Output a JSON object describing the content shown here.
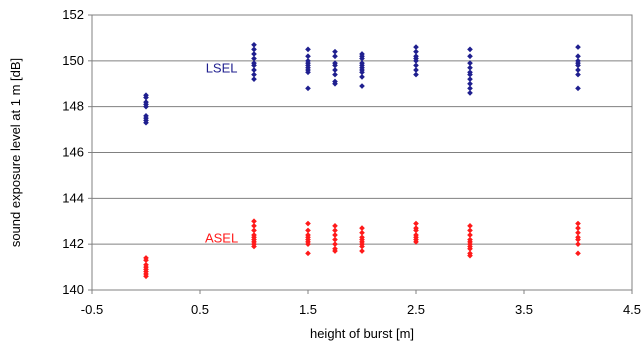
{
  "chart_data": {
    "type": "scatter",
    "title": "",
    "xlabel": "height of burst [m]",
    "ylabel": "sound exposure level at 1 m [dB]",
    "xlim": [
      -0.5,
      4.5
    ],
    "ylim": [
      140,
      152
    ],
    "x_ticks": [
      "-0.5",
      "0.5",
      "1.5",
      "2.5",
      "3.5",
      "4.5"
    ],
    "y_ticks": [
      "140",
      "142",
      "144",
      "146",
      "148",
      "150",
      "152"
    ],
    "x_tick_values": [
      -0.5,
      0.5,
      1.5,
      2.5,
      3.5,
      4.5
    ],
    "y_tick_values": [
      140,
      142,
      144,
      146,
      148,
      150,
      152
    ],
    "grid": "horizontal",
    "series": [
      {
        "name": "LSEL",
        "color": "#1f1f8f",
        "label_at": [
          0.7,
          149.7
        ],
        "points": [
          [
            0,
            148.5
          ],
          [
            0,
            148.4
          ],
          [
            0,
            148.2
          ],
          [
            0,
            148.1
          ],
          [
            0,
            148.0
          ],
          [
            0,
            147.6
          ],
          [
            0,
            147.5
          ],
          [
            0,
            147.4
          ],
          [
            0,
            147.3
          ],
          [
            1,
            150.7
          ],
          [
            1,
            150.5
          ],
          [
            1,
            150.3
          ],
          [
            1,
            150.1
          ],
          [
            1,
            149.9
          ],
          [
            1,
            149.8
          ],
          [
            1,
            149.6
          ],
          [
            1,
            149.4
          ],
          [
            1,
            149.2
          ],
          [
            1.5,
            150.5
          ],
          [
            1.5,
            150.2
          ],
          [
            1.5,
            150.0
          ],
          [
            1.5,
            149.9
          ],
          [
            1.5,
            149.8
          ],
          [
            1.5,
            149.7
          ],
          [
            1.5,
            149.6
          ],
          [
            1.5,
            149.5
          ],
          [
            1.5,
            148.8
          ],
          [
            1.75,
            150.4
          ],
          [
            1.75,
            150.2
          ],
          [
            1.75,
            149.9
          ],
          [
            1.75,
            149.8
          ],
          [
            1.75,
            149.6
          ],
          [
            1.75,
            149.4
          ],
          [
            1.75,
            149.1
          ],
          [
            1.75,
            149.0
          ],
          [
            2,
            150.3
          ],
          [
            2,
            150.2
          ],
          [
            2,
            150.1
          ],
          [
            2,
            149.9
          ],
          [
            2,
            149.8
          ],
          [
            2,
            149.7
          ],
          [
            2,
            149.6
          ],
          [
            2,
            149.5
          ],
          [
            2,
            149.3
          ],
          [
            2,
            148.9
          ],
          [
            2.5,
            150.6
          ],
          [
            2.5,
            150.4
          ],
          [
            2.5,
            150.2
          ],
          [
            2.5,
            150.1
          ],
          [
            2.5,
            150.0
          ],
          [
            2.5,
            149.8
          ],
          [
            2.5,
            149.6
          ],
          [
            2.5,
            149.4
          ],
          [
            3,
            150.5
          ],
          [
            3,
            150.2
          ],
          [
            3,
            149.9
          ],
          [
            3,
            149.7
          ],
          [
            3,
            149.5
          ],
          [
            3,
            149.4
          ],
          [
            3,
            149.2
          ],
          [
            3,
            149.0
          ],
          [
            3,
            148.8
          ],
          [
            3,
            148.6
          ],
          [
            4,
            150.6
          ],
          [
            4,
            150.2
          ],
          [
            4,
            150.0
          ],
          [
            4,
            149.9
          ],
          [
            4,
            149.8
          ],
          [
            4,
            149.6
          ],
          [
            4,
            149.4
          ],
          [
            4,
            148.8
          ]
        ]
      },
      {
        "name": "ASEL",
        "color": "#ff1a1a",
        "label_at": [
          0.7,
          142.3
        ],
        "points": [
          [
            0,
            141.4
          ],
          [
            0,
            141.3
          ],
          [
            0,
            141.1
          ],
          [
            0,
            141.0
          ],
          [
            0,
            140.9
          ],
          [
            0,
            140.8
          ],
          [
            0,
            140.7
          ],
          [
            0,
            140.6
          ],
          [
            1,
            143.0
          ],
          [
            1,
            142.8
          ],
          [
            1,
            142.6
          ],
          [
            1,
            142.4
          ],
          [
            1,
            142.3
          ],
          [
            1,
            142.2
          ],
          [
            1,
            142.1
          ],
          [
            1,
            142.0
          ],
          [
            1,
            141.9
          ],
          [
            1.5,
            142.9
          ],
          [
            1.5,
            142.6
          ],
          [
            1.5,
            142.4
          ],
          [
            1.5,
            142.3
          ],
          [
            1.5,
            142.2
          ],
          [
            1.5,
            142.1
          ],
          [
            1.5,
            142.0
          ],
          [
            1.5,
            141.6
          ],
          [
            1.75,
            142.8
          ],
          [
            1.75,
            142.6
          ],
          [
            1.75,
            142.4
          ],
          [
            1.75,
            142.2
          ],
          [
            1.75,
            142.0
          ],
          [
            1.75,
            141.8
          ],
          [
            1.75,
            141.7
          ],
          [
            2,
            142.7
          ],
          [
            2,
            142.5
          ],
          [
            2,
            142.3
          ],
          [
            2,
            142.2
          ],
          [
            2,
            142.1
          ],
          [
            2,
            142.0
          ],
          [
            2,
            141.9
          ],
          [
            2,
            141.7
          ],
          [
            2.5,
            142.9
          ],
          [
            2.5,
            142.7
          ],
          [
            2.5,
            142.6
          ],
          [
            2.5,
            142.4
          ],
          [
            2.5,
            142.3
          ],
          [
            2.5,
            142.2
          ],
          [
            2.5,
            142.1
          ],
          [
            3,
            142.8
          ],
          [
            3,
            142.6
          ],
          [
            3,
            142.4
          ],
          [
            3,
            142.2
          ],
          [
            3,
            142.1
          ],
          [
            3,
            142.0
          ],
          [
            3,
            141.9
          ],
          [
            3,
            141.8
          ],
          [
            3,
            141.6
          ],
          [
            3,
            141.5
          ],
          [
            4,
            142.9
          ],
          [
            4,
            142.7
          ],
          [
            4,
            142.5
          ],
          [
            4,
            142.3
          ],
          [
            4,
            142.2
          ],
          [
            4,
            142.0
          ],
          [
            4,
            141.6
          ]
        ]
      }
    ]
  }
}
